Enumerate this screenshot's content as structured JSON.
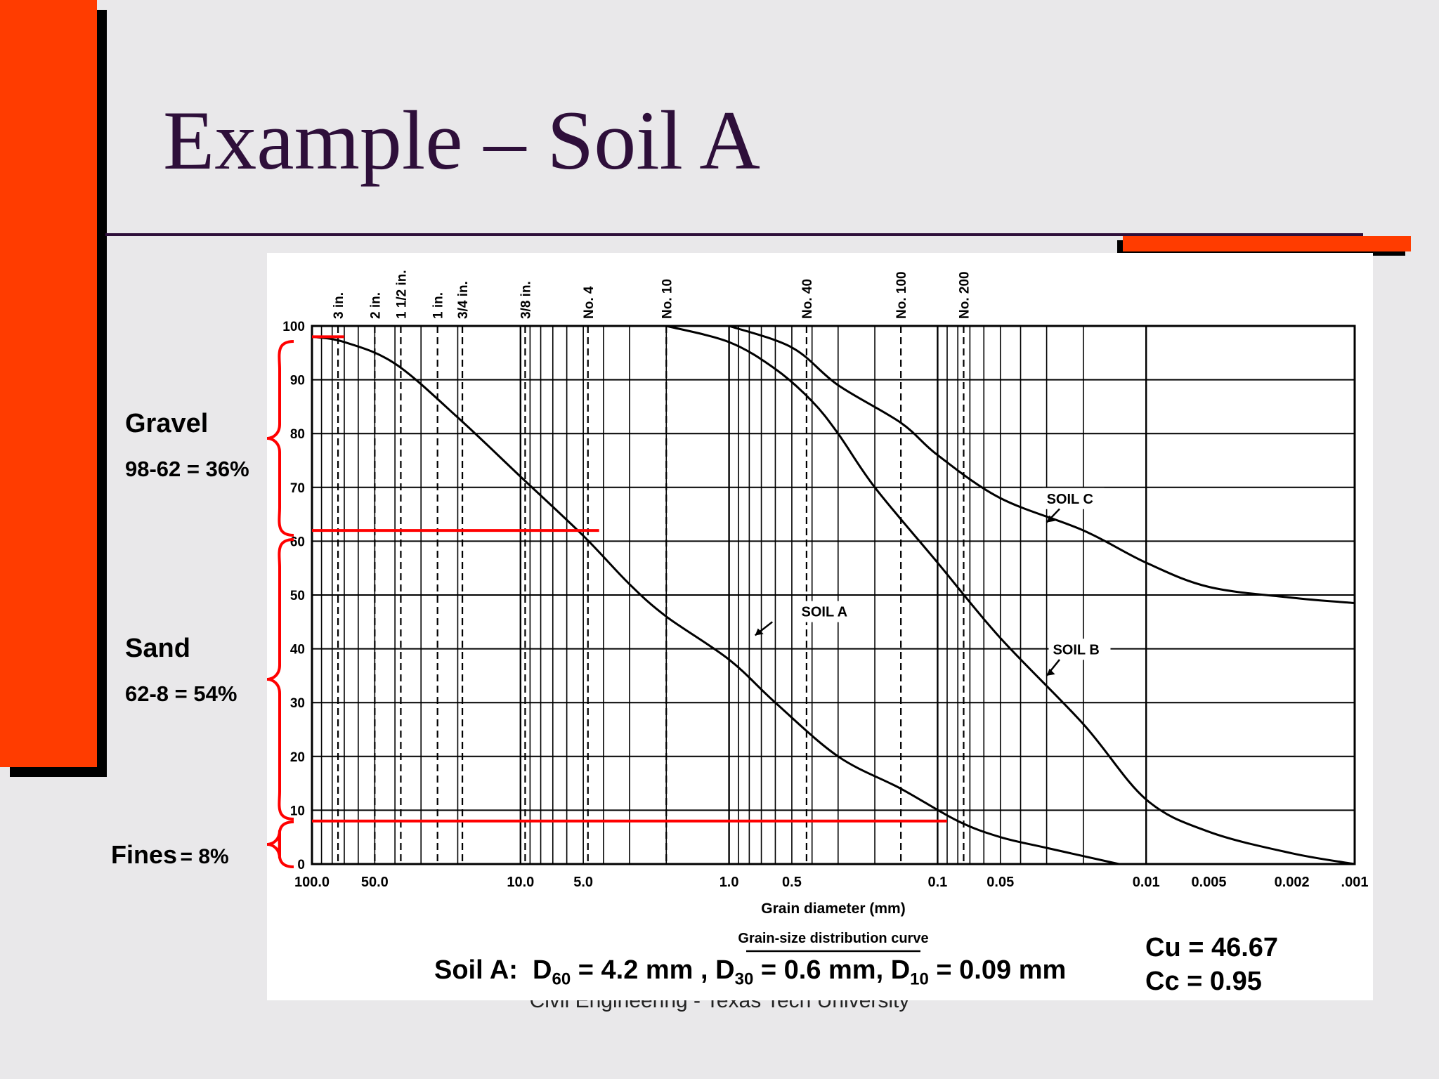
{
  "slide": {
    "title": "Example – Soil A",
    "footer": "Civil Engineering - Texas Tech University"
  },
  "colors": {
    "accent_bar": "#ff3c00",
    "title": "#2e0f3a",
    "rule": "#2e0f3a",
    "annotation": "#ff0000"
  },
  "annotations": {
    "gravel": {
      "label": "Gravel",
      "calc": "98-62 = 36%"
    },
    "sand": {
      "label": "Sand",
      "calc": "62-8 = 54%"
    },
    "fines": {
      "label": "Fines",
      "value": "= 8%"
    }
  },
  "formula": {
    "prefix": "Soil A:",
    "d60_sym": "D",
    "d60_sub": "60",
    "d60_val": "= 4.2 mm ,",
    "d30_sym": "D",
    "d30_sub": "30",
    "d30_val": "= 0.6 mm,",
    "d10_sym": "D",
    "d10_sub": "10",
    "d10_val": "= 0.09 mm"
  },
  "coefficients": {
    "cu": "Cu = 46.67",
    "cc": "Cc = 0.95"
  },
  "chart_data": {
    "type": "line",
    "title": "Grain-size distribution curve",
    "xlabel": "Grain diameter (mm)",
    "ylabel": "",
    "x_scale": "log",
    "x_reversed": true,
    "xlim": [
      100,
      0.001
    ],
    "ylim": [
      0,
      100
    ],
    "y_ticks": [
      0,
      10,
      20,
      30,
      40,
      50,
      60,
      70,
      80,
      90,
      100
    ],
    "x_tick_labels": [
      {
        "v": 100,
        "t": "100.0"
      },
      {
        "v": 50,
        "t": "50.0"
      },
      {
        "v": 10,
        "t": "10.0"
      },
      {
        "v": 5,
        "t": "5.0"
      },
      {
        "v": 1,
        "t": "1.0"
      },
      {
        "v": 0.5,
        "t": "0.5"
      },
      {
        "v": 0.1,
        "t": "0.1"
      },
      {
        "v": 0.05,
        "t": "0.05"
      },
      {
        "v": 0.01,
        "t": "0.01"
      },
      {
        "v": 0.005,
        "t": "0.005"
      },
      {
        "v": 0.002,
        "t": "0.002"
      },
      {
        "v": 0.001,
        "t": ".001"
      }
    ],
    "sieves": [
      {
        "name": "3 in.",
        "d": 75
      },
      {
        "name": "2 in.",
        "d": 50
      },
      {
        "name": "1 1/2 in.",
        "d": 37.5
      },
      {
        "name": "1 in.",
        "d": 25
      },
      {
        "name": "3/4 in.",
        "d": 19
      },
      {
        "name": "3/8 in.",
        "d": 9.5
      },
      {
        "name": "No. 4",
        "d": 4.75
      },
      {
        "name": "No. 10",
        "d": 2
      },
      {
        "name": "No. 40",
        "d": 0.425
      },
      {
        "name": "No. 100",
        "d": 0.15
      },
      {
        "name": "No. 200",
        "d": 0.075
      }
    ],
    "series": [
      {
        "name": "SOIL A",
        "points": [
          [
            100,
            98
          ],
          [
            70,
            97
          ],
          [
            40,
            93
          ],
          [
            20,
            83
          ],
          [
            10,
            72
          ],
          [
            5,
            61
          ],
          [
            3,
            52
          ],
          [
            2,
            46
          ],
          [
            1,
            38
          ],
          [
            0.6,
            30
          ],
          [
            0.3,
            20
          ],
          [
            0.15,
            14
          ],
          [
            0.08,
            8
          ],
          [
            0.05,
            5
          ],
          [
            0.03,
            3
          ],
          [
            0.0135,
            0
          ]
        ]
      },
      {
        "name": "SOIL B",
        "points": [
          [
            2,
            100
          ],
          [
            1,
            97
          ],
          [
            0.6,
            92
          ],
          [
            0.4,
            86
          ],
          [
            0.3,
            80
          ],
          [
            0.2,
            70
          ],
          [
            0.1,
            56
          ],
          [
            0.05,
            42
          ],
          [
            0.02,
            26
          ],
          [
            0.01,
            12
          ],
          [
            0.005,
            6
          ],
          [
            0.002,
            2
          ],
          [
            0.001,
            0
          ]
        ]
      },
      {
        "name": "SOIL C",
        "points": [
          [
            1,
            100
          ],
          [
            0.5,
            96
          ],
          [
            0.3,
            89
          ],
          [
            0.15,
            82
          ],
          [
            0.1,
            76
          ],
          [
            0.05,
            68
          ],
          [
            0.02,
            62
          ],
          [
            0.01,
            56
          ],
          [
            0.005,
            51.5
          ],
          [
            0.002,
            49.5
          ],
          [
            0.001,
            48.5
          ]
        ]
      }
    ],
    "annotation_lines": [
      {
        "y": 62,
        "x_to": 4.2
      },
      {
        "y": 8,
        "x_to": 0.09
      }
    ],
    "annotation_lines_extra": {
      "y": 98,
      "x_to": 70
    }
  }
}
